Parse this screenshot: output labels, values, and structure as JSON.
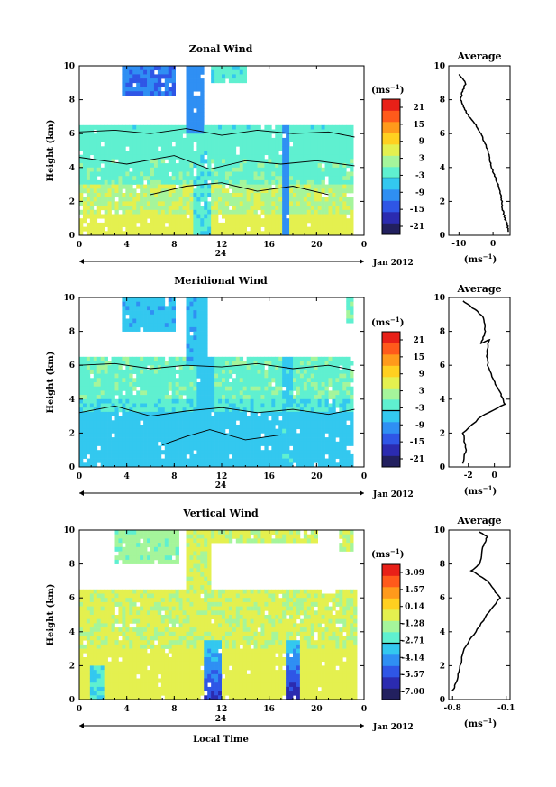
{
  "colors": {
    "palette": [
      "#22205f",
      "#2b2bb0",
      "#2f56e6",
      "#2f8ff3",
      "#33c8ef",
      "#5ff0d0",
      "#a5f59b",
      "#e4f04f",
      "#ffd020",
      "#ff9a1b",
      "#ff5a1b",
      "#e82018"
    ],
    "contour": "#000000",
    "axis": "#000000"
  },
  "xlabel": "Local Time",
  "date_label": "Jan 2012",
  "day_label": "24",
  "chart_data": [
    {
      "type": "heatmap",
      "title": "Zonal Wind",
      "ylabel": "Height (km)",
      "xlim": [
        0,
        24
      ],
      "ylim": [
        0,
        10
      ],
      "xticks": [
        "0",
        "4",
        "8",
        "12",
        "16",
        "20",
        "0"
      ],
      "yticks": [
        "0",
        "2",
        "4",
        "6",
        "8",
        "10"
      ],
      "colorbar_unit": "(ms⁻¹)",
      "colorbar_ticks": [
        "21",
        "15",
        "9",
        "3",
        "-3",
        "-9",
        "-15",
        "-21"
      ],
      "colorbar_range": [
        -24,
        24
      ],
      "profile": {
        "title": "Average",
        "xlabel": "(ms⁻¹)",
        "xticks": [
          "-10",
          "0"
        ],
        "xlim": [
          -13,
          5
        ],
        "ylim": [
          0,
          10
        ],
        "yticks": [
          "0",
          "2",
          "4",
          "6",
          "8",
          "10"
        ],
        "points": [
          [
            4.5,
            0.2
          ],
          [
            4.2,
            0.6
          ],
          [
            3.5,
            1.0
          ],
          [
            2.8,
            1.5
          ],
          [
            2.6,
            2.0
          ],
          [
            2.2,
            2.5
          ],
          [
            1.5,
            3.0
          ],
          [
            0.5,
            3.5
          ],
          [
            -0.5,
            4.0
          ],
          [
            -1.0,
            4.5
          ],
          [
            -1.5,
            5.0
          ],
          [
            -2.5,
            5.5
          ],
          [
            -3.5,
            6.0
          ],
          [
            -5.0,
            6.5
          ],
          [
            -7.0,
            7.0
          ],
          [
            -8.5,
            7.5
          ],
          [
            -9.5,
            8.0
          ],
          [
            -9.0,
            8.5
          ],
          [
            -8.0,
            9.0
          ],
          [
            -10.0,
            9.5
          ]
        ]
      }
    },
    {
      "type": "heatmap",
      "title": "Meridional Wind",
      "ylabel": "Height (km)",
      "xlim": [
        0,
        24
      ],
      "ylim": [
        0,
        10
      ],
      "xticks": [
        "0",
        "4",
        "8",
        "12",
        "16",
        "20",
        "0"
      ],
      "yticks": [
        "0",
        "2",
        "4",
        "6",
        "8",
        "10"
      ],
      "colorbar_unit": "(ms⁻¹)",
      "colorbar_ticks": [
        "21",
        "15",
        "9",
        "3",
        "-3",
        "-9",
        "-15",
        "-21"
      ],
      "colorbar_range": [
        -24,
        24
      ],
      "profile": {
        "title": "Average",
        "xlabel": "(ms⁻¹)",
        "xticks": [
          "-2",
          "0"
        ],
        "xlim": [
          -3.5,
          1.2
        ],
        "ylim": [
          0,
          10
        ],
        "yticks": [
          "0",
          "2",
          "4",
          "6",
          "8",
          "10"
        ],
        "points": [
          [
            -2.4,
            0.2
          ],
          [
            -2.2,
            1.0
          ],
          [
            -2.4,
            2.0
          ],
          [
            -1.0,
            3.0
          ],
          [
            0.8,
            3.7
          ],
          [
            0.5,
            4.3
          ],
          [
            0.0,
            5.0
          ],
          [
            -0.5,
            6.0
          ],
          [
            -0.6,
            6.8
          ],
          [
            -0.4,
            7.5
          ],
          [
            -1.0,
            7.3
          ],
          [
            -0.7,
            8.0
          ],
          [
            -0.8,
            8.8
          ],
          [
            -1.5,
            9.3
          ],
          [
            -2.4,
            9.8
          ]
        ]
      }
    },
    {
      "type": "heatmap",
      "title": "Vertical Wind",
      "ylabel": "Height (km)",
      "xlim": [
        0,
        24
      ],
      "ylim": [
        0,
        10
      ],
      "xticks": [
        "0",
        "4",
        "8",
        "12",
        "16",
        "20",
        "0"
      ],
      "yticks": [
        "0",
        "2",
        "4",
        "6",
        "8",
        "10"
      ],
      "colorbar_unit": "(ms⁻¹)",
      "colorbar_ticks": [
        "3.09",
        "1.57",
        "0.14",
        "-1.28",
        "-2.71",
        "-4.14",
        "-5.57",
        "-7.00"
      ],
      "colorbar_range": [
        -7.7,
        3.8
      ],
      "profile": {
        "title": "Average",
        "xlabel": "(ms⁻¹)",
        "xticks": [
          "-0.8",
          "-0.1"
        ],
        "xlim": [
          -0.85,
          -0.05
        ],
        "ylim": [
          0,
          10
        ],
        "yticks": [
          "0",
          "2",
          "4",
          "6",
          "8",
          "10"
        ],
        "points": [
          [
            -0.8,
            0.5
          ],
          [
            -0.75,
            1.0
          ],
          [
            -0.7,
            2.0
          ],
          [
            -0.65,
            3.0
          ],
          [
            -0.5,
            4.0
          ],
          [
            -0.35,
            5.0
          ],
          [
            -0.18,
            6.0
          ],
          [
            -0.35,
            7.0
          ],
          [
            -0.55,
            7.6
          ],
          [
            -0.45,
            8.0
          ],
          [
            -0.4,
            9.0
          ],
          [
            -0.35,
            9.6
          ],
          [
            -0.45,
            9.9
          ]
        ]
      }
    }
  ]
}
